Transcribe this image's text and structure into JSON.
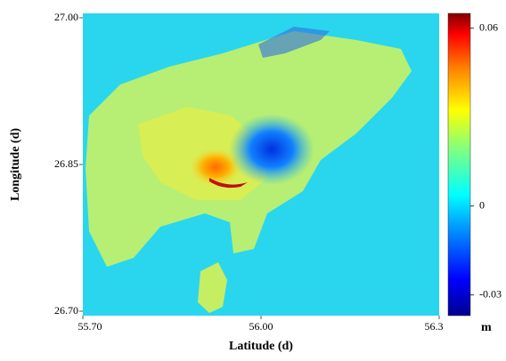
{
  "chart_data": {
    "type": "map",
    "xlabel": "Latitude (d)",
    "ylabel": "Longitude (d)",
    "xlim": [
      55.7,
      56.3
    ],
    "xticks": [
      {
        "value": 55.7,
        "label": "55.70"
      },
      {
        "value": 56.0,
        "label": "56.00"
      },
      56.3
    ],
    "ylim": [
      26.7,
      27.0
    ],
    "yticks": [
      {
        "value": 26.7,
        "label": "26.70"
      },
      {
        "value": 26.85,
        "label": "26.85"
      },
      {
        "value": 27.0,
        "label": "27.00"
      }
    ],
    "colorbar": {
      "label": "m",
      "lim": [
        -0.037,
        0.065
      ],
      "ticks": [
        -0.03,
        0,
        0.06
      ]
    }
  }
}
